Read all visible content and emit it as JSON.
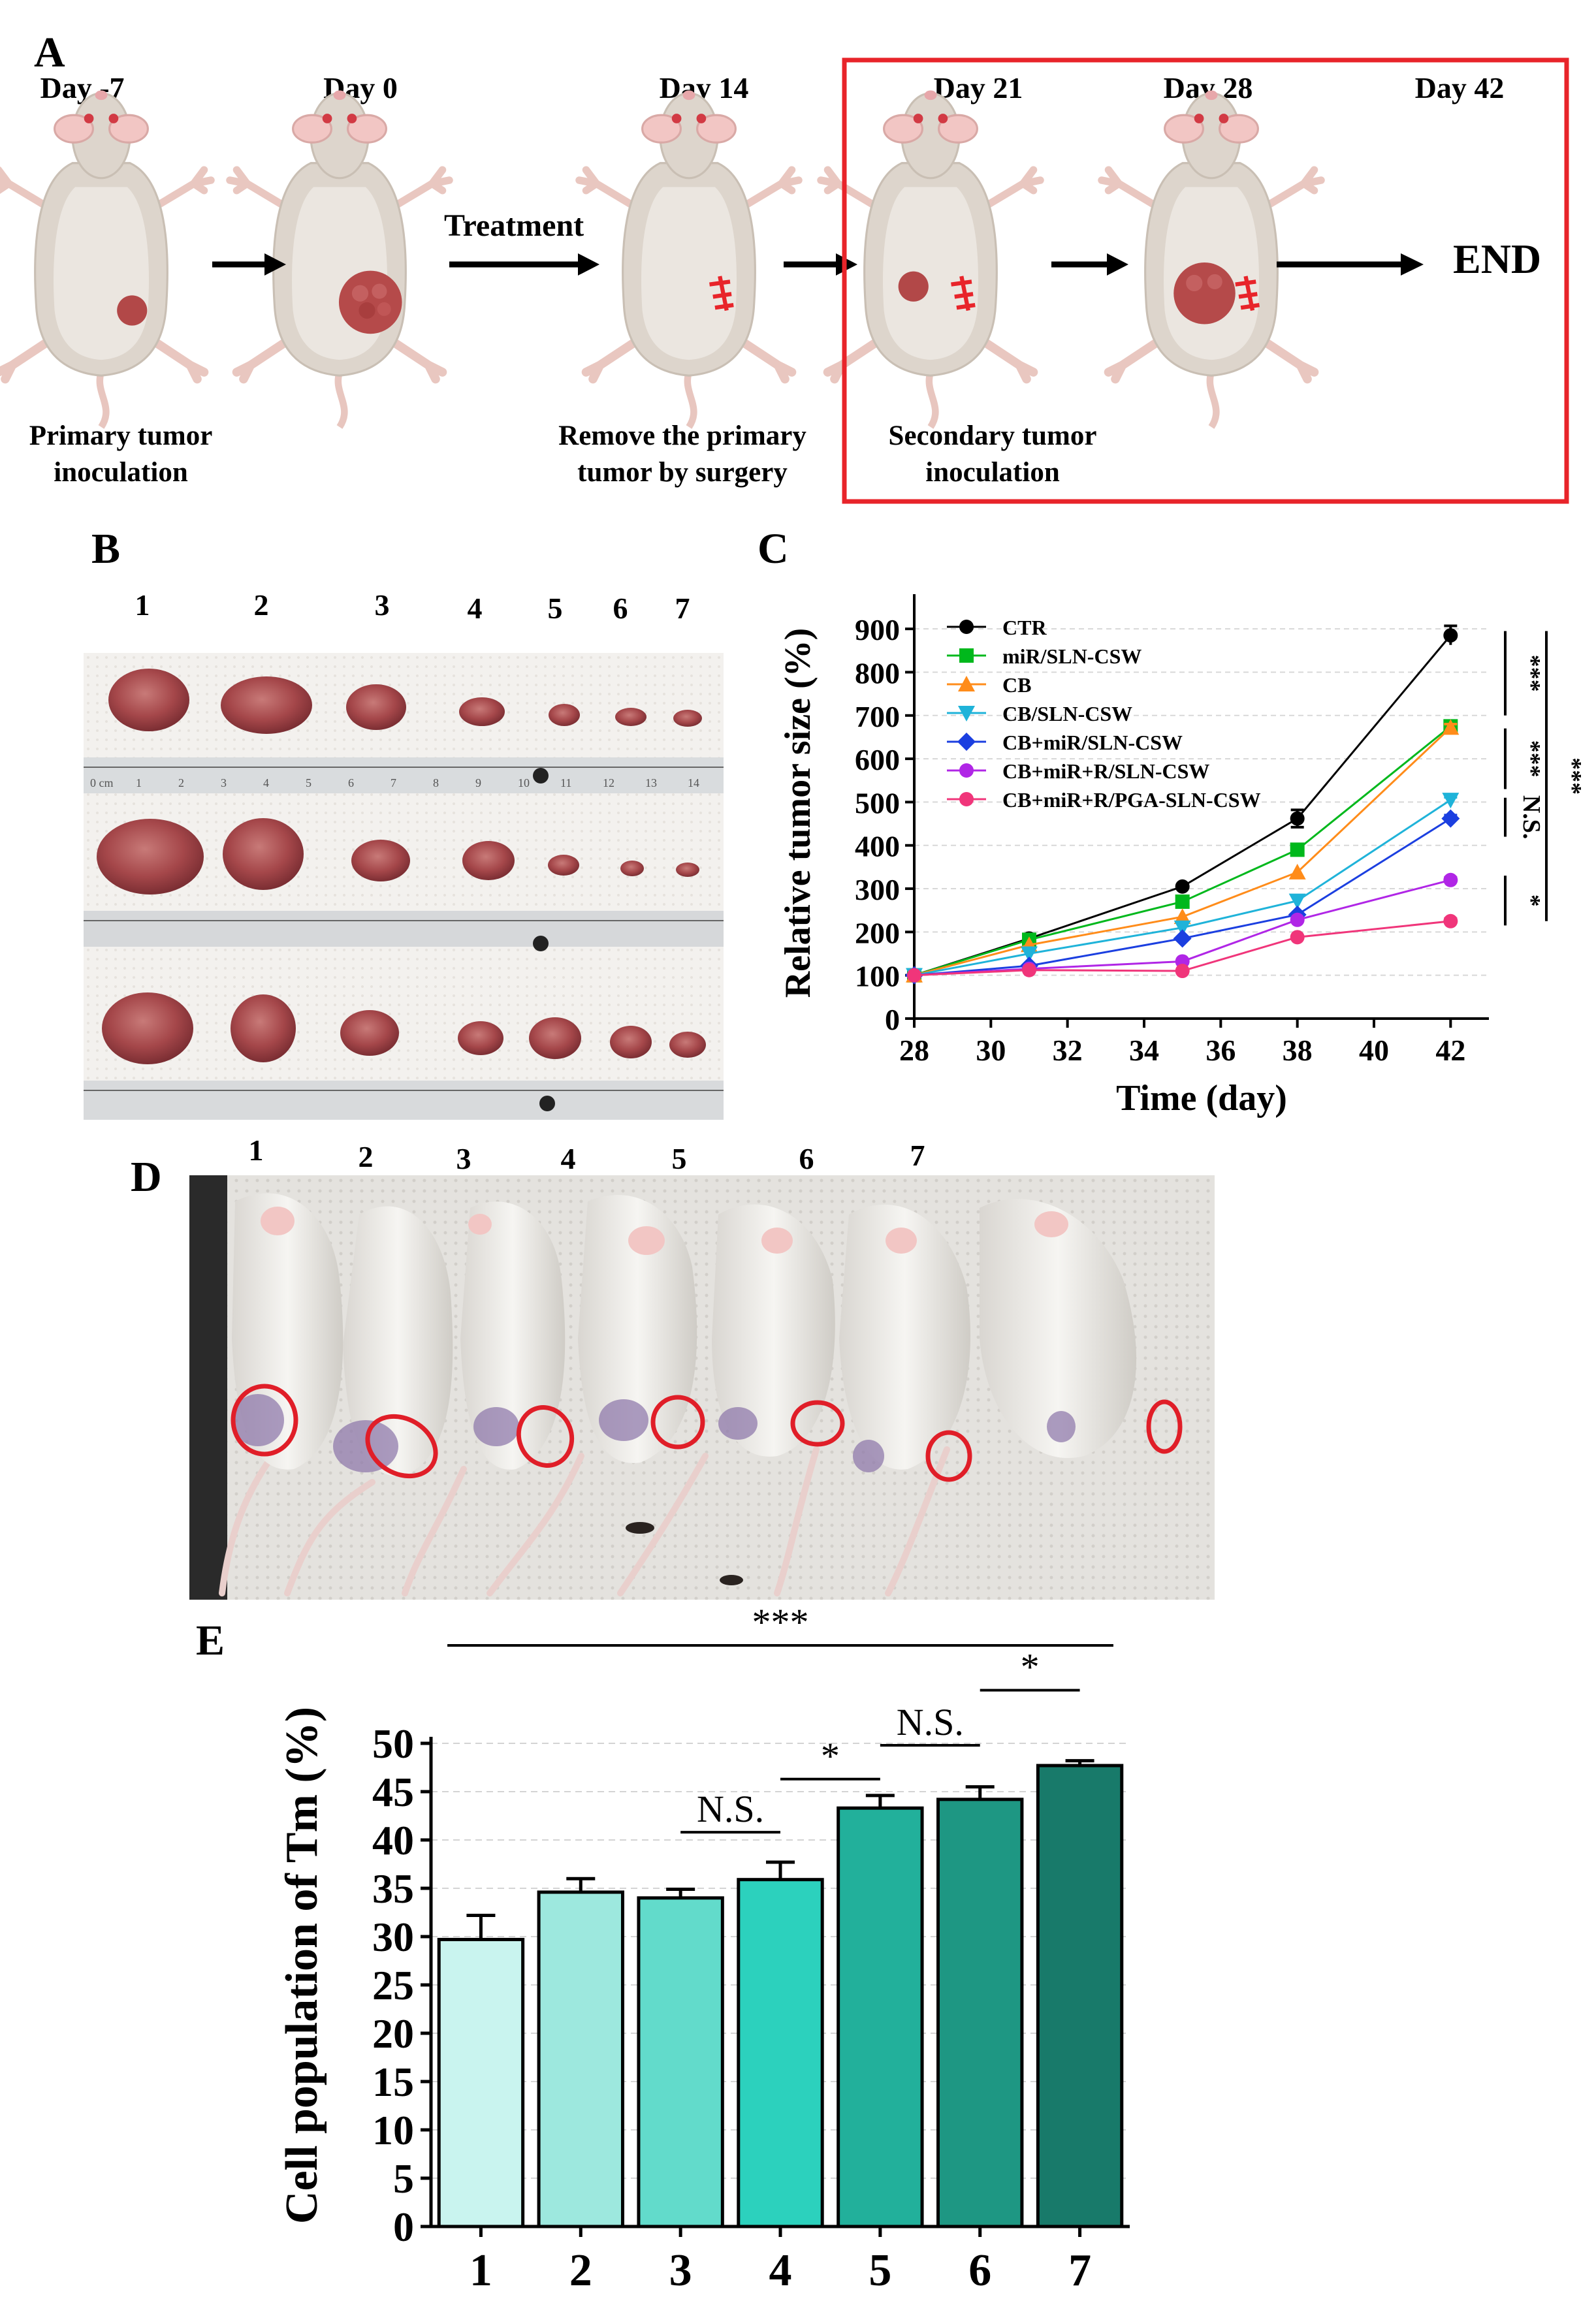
{
  "panels": {
    "a": "A",
    "b": "B",
    "c": "C",
    "d": "D",
    "e": "E"
  },
  "timeline": {
    "days": [
      "Day -7",
      "Day 0",
      "Day 14",
      "Day 21",
      "Day 28",
      "Day 42"
    ],
    "treatment_label": "Treatment",
    "end_label": "END",
    "captions": {
      "primary_line1": "Primary tumor",
      "primary_line2": "inoculation",
      "remove_line1": "Remove the primary",
      "remove_line2": "tumor by surgery",
      "secondary_line1": "Secondary tumor",
      "secondary_line2": "inoculation"
    },
    "highlight_color": "#e8242a"
  },
  "tumor_photo": {
    "lanes": [
      "1",
      "2",
      "3",
      "4",
      "5",
      "6",
      "7"
    ],
    "ruler_ticks": [
      "0 cm",
      "1",
      "2",
      "3",
      "4",
      "5",
      "6",
      "7",
      "8",
      "9",
      "10",
      "11",
      "12",
      "13",
      "14"
    ]
  },
  "mice_photo": {
    "lanes": [
      "1",
      "2",
      "3",
      "4",
      "5",
      "6",
      "7"
    ]
  },
  "chart_data": [
    {
      "type": "line",
      "title": "",
      "xlabel": "Time (day)",
      "ylabel": "Relative tumor size (%)",
      "xlim": [
        28,
        43
      ],
      "ylim": [
        0,
        950
      ],
      "xticks": [
        28,
        30,
        32,
        34,
        36,
        38,
        40,
        42
      ],
      "yticks": [
        0,
        100,
        200,
        300,
        400,
        500,
        600,
        700,
        800,
        900
      ],
      "x": [
        28,
        31,
        35,
        38,
        42
      ],
      "series": [
        {
          "name": "CTR",
          "color": "#000000",
          "marker": "circle",
          "values": [
            100,
            185,
            305,
            462,
            885
          ]
        },
        {
          "name": "miR/SLN-CSW",
          "color": "#00b81c",
          "marker": "square",
          "values": [
            100,
            182,
            270,
            390,
            675
          ]
        },
        {
          "name": "CB",
          "color": "#ff8c1a",
          "marker": "triangle-up",
          "values": [
            100,
            170,
            235,
            338,
            672
          ]
        },
        {
          "name": "CB/SLN-CSW",
          "color": "#1fb3d9",
          "marker": "triangle-down",
          "values": [
            100,
            150,
            210,
            272,
            505
          ]
        },
        {
          "name": "CB+miR/SLN-CSW",
          "color": "#1b3fe0",
          "marker": "diamond",
          "values": [
            100,
            122,
            185,
            240,
            462
          ]
        },
        {
          "name": "CB+miR+R/SLN-CSW",
          "color": "#b026e6",
          "marker": "circle",
          "values": [
            100,
            115,
            132,
            228,
            320
          ]
        },
        {
          "name": "CB+miR+R/PGA-SLN-CSW",
          "color": "#f0357a",
          "marker": "circle",
          "values": [
            100,
            112,
            110,
            188,
            225
          ]
        }
      ],
      "errors_at_42": [
        22,
        8,
        8,
        6,
        8,
        6,
        6
      ],
      "error_ctr_38": 20,
      "significance": [
        "***",
        "***",
        "N.S.",
        "*",
        "***"
      ]
    },
    {
      "type": "bar",
      "title": "",
      "xlabel": "",
      "ylabel": "Cell population of Tm (%)",
      "ylim": [
        0,
        50
      ],
      "yticks": [
        0,
        5,
        10,
        15,
        20,
        25,
        30,
        35,
        40,
        45,
        50
      ],
      "categories": [
        "1",
        "2",
        "3",
        "4",
        "5",
        "6",
        "7"
      ],
      "values": [
        29.7,
        34.6,
        34.0,
        35.9,
        43.3,
        44.2,
        47.7
      ],
      "errors": [
        2.5,
        1.4,
        0.9,
        1.8,
        1.3,
        1.3,
        0.5
      ],
      "bar_colors": [
        "#c9f4ef",
        "#9de8de",
        "#62dbcb",
        "#2cd1bd",
        "#22b09b",
        "#1e9783",
        "#187a6a"
      ],
      "significance": [
        {
          "label": "***",
          "from": "1",
          "to": "7"
        },
        {
          "label": "N.S.",
          "from": "3",
          "to": "4"
        },
        {
          "label": "*",
          "from": "4",
          "to": "5"
        },
        {
          "label": "N.S.",
          "from": "5",
          "to": "6"
        },
        {
          "label": "*",
          "from": "6",
          "to": "7"
        }
      ]
    }
  ]
}
